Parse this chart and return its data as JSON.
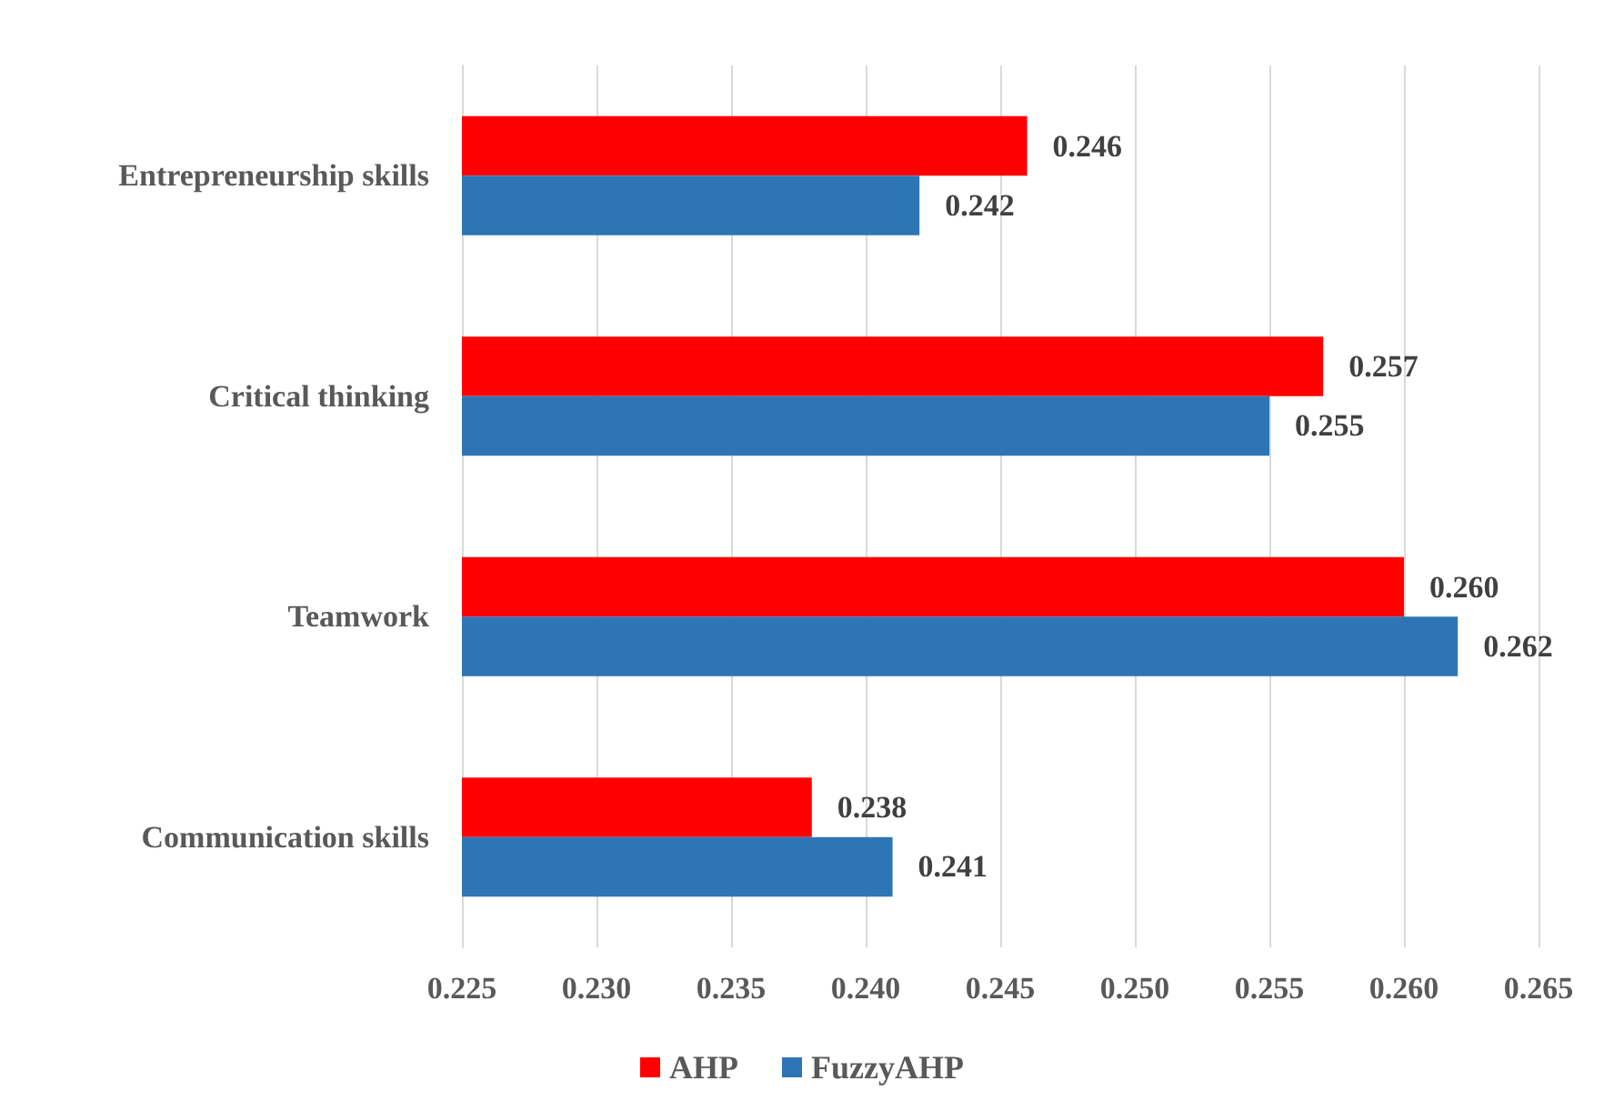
{
  "chart_data": {
    "type": "bar",
    "orientation": "horizontal",
    "categories": [
      "Entrepreneurship skills",
      "Critical thinking",
      "Teamwork",
      "Communication skills"
    ],
    "series": [
      {
        "name": "AHP",
        "color": "#ff0000",
        "values": [
          0.246,
          0.257,
          0.26,
          0.238
        ],
        "value_labels": [
          "0.246",
          "0.257",
          "0.260",
          "0.238"
        ]
      },
      {
        "name": "FuzzyAHP",
        "color": "#2e75b6",
        "values": [
          0.242,
          0.255,
          0.262,
          0.241
        ],
        "value_labels": [
          "0.242",
          "0.255",
          "0.262",
          "0.241"
        ]
      }
    ],
    "xlim": [
      0.225,
      0.265
    ],
    "xticks": [
      "0.225",
      "0.230",
      "0.235",
      "0.240",
      "0.245",
      "0.250",
      "0.255",
      "0.260",
      "0.265"
    ],
    "grid": "x",
    "legend": "bottom"
  }
}
